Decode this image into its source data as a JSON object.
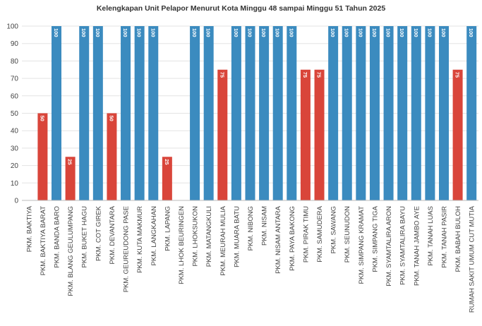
{
  "chart_data": {
    "type": "bar",
    "title": "Kelengkapan  Unit Pelapor  Menurut Kota  Minggu 48 sampai Minggu 51 Tahun 2025",
    "xlabel": "",
    "ylabel": "",
    "ylim": [
      0,
      100
    ],
    "yticks": [
      0,
      10,
      20,
      30,
      40,
      50,
      60,
      70,
      80,
      90,
      100
    ],
    "grid": true,
    "legend": "none",
    "colors": {
      "complete": "#3b8bbf",
      "incomplete": "#d9453a"
    },
    "categories": [
      "PKM. BAKTIYA",
      "PKM. BAKTIYA BARAT",
      "PKM. BANDA BARO",
      "PKM. BLANG GEULUMPANG",
      "PKM. BUKET HAGU",
      "PKM. COT GIREK",
      "PKM. DEVANTARA",
      "PKM. GEUREUDONG PASE",
      "PKM. KUTA MAKMUR",
      "PKM. LANGKAHAN",
      "PKM. LAPANG",
      "PKM. LHOK BEURINGEN",
      "PKM. LHOKSUKON",
      "PKM. MATANGKULI",
      "PKM. MEURAH MULIA",
      "PKM. MUARA BATU",
      "PKM. NIBONG",
      "PKM. NISAM",
      "PKM. NISAM ANTARA",
      "PKM. PAYA BAKONG",
      "PKM. PIRAK TIMU",
      "PKM. SAMUDERA",
      "PKM. SAWANG",
      "PKM. SEUNUDON",
      "PKM. SIMPANG KRAMAT",
      "PKM. SIMPANG TIGA",
      "PKM. SYAMTALIRA ARON",
      "PKM. SYAMTALIRA BAYU",
      "PKM. TANAH JAMBO AYE",
      "PKM. TANAH LUAS",
      "PKM. TANAH PASIR",
      "PKM. BABAH BULOH",
      "RUMAH SAKIT UMUM CUT MUTIA"
    ],
    "values": [
      0,
      50,
      100,
      25,
      100,
      100,
      50,
      100,
      100,
      100,
      25,
      0,
      100,
      100,
      75,
      100,
      100,
      100,
      100,
      100,
      75,
      75,
      100,
      100,
      100,
      100,
      100,
      100,
      100,
      100,
      100,
      75,
      100
    ],
    "data_labels": [
      "",
      "50",
      "100",
      "25",
      "100",
      "100",
      "50",
      "100",
      "100",
      "100",
      "25",
      "",
      "100",
      "100",
      "75",
      "100",
      "100",
      "100",
      "100",
      "100",
      "75",
      "75",
      "100",
      "100",
      "100",
      "100",
      "100",
      "100",
      "100",
      "100",
      "100",
      "75",
      "100"
    ]
  }
}
